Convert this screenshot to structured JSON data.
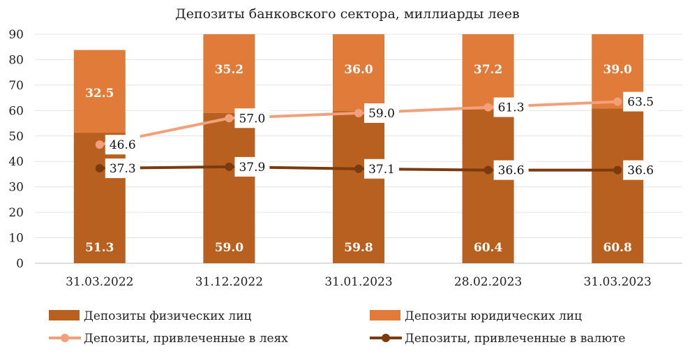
{
  "chart_data": {
    "type": "bar",
    "title": "Депозиты банковского сектора, миллиарды леев",
    "categories": [
      "31.03.2022",
      "31.12.2022",
      "31.01.2023",
      "28.02.2023",
      "31.03.2023"
    ],
    "ylim": [
      0,
      90
    ],
    "yticks": [
      0,
      10,
      20,
      30,
      40,
      50,
      60,
      70,
      80,
      90
    ],
    "grid": true,
    "legend_position": "bottom",
    "stacked_series": [
      {
        "name": "Депозиты физических лиц",
        "values": [
          51.3,
          59.0,
          59.8,
          60.4,
          60.8
        ],
        "labels": [
          "51.3",
          "59.0",
          "59.8",
          "60.4",
          "60.8"
        ],
        "color": "#b8601f"
      },
      {
        "name": "Депозиты юридических лиц",
        "values": [
          32.5,
          35.2,
          36.0,
          37.2,
          39.0
        ],
        "labels": [
          "32.5",
          "35.2",
          "36.0",
          "37.2",
          "39.0"
        ],
        "color": "#e07b39"
      }
    ],
    "line_series": [
      {
        "name": "Депозиты, привлеченные в леях",
        "values": [
          46.6,
          57.0,
          59.0,
          61.3,
          63.5
        ],
        "labels": [
          "46.6",
          "57.0",
          "59.0",
          "61.3",
          "63.5"
        ],
        "color": "#f2a07b"
      },
      {
        "name": "Депозиты, привлеченные в валюте",
        "values": [
          37.3,
          37.9,
          37.1,
          36.6,
          36.6
        ],
        "labels": [
          "37.3",
          "37.9",
          "37.1",
          "36.6",
          "36.6"
        ],
        "color": "#7b3a10"
      }
    ]
  }
}
